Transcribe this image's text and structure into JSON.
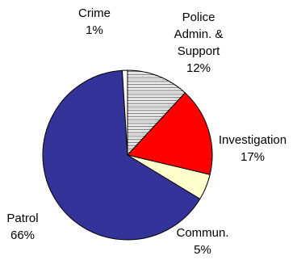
{
  "chart_data": {
    "type": "pie",
    "title": "",
    "slices": [
      {
        "key": "police",
        "label_lines": [
          "Police",
          "Admin. &",
          "Support"
        ],
        "value": 12,
        "value_label": "12%",
        "color": "#ffffff",
        "pattern": "horizontal-stripes"
      },
      {
        "key": "investigation",
        "label_lines": [
          "Investigation"
        ],
        "value": 17,
        "value_label": "17%",
        "color": "#ff0000"
      },
      {
        "key": "commun",
        "label_lines": [
          "Commun."
        ],
        "value": 5,
        "value_label": "5%",
        "color": "#ffffcc"
      },
      {
        "key": "patrol",
        "label_lines": [
          "Patrol"
        ],
        "value": 66,
        "value_label": "66%",
        "color": "#333399"
      },
      {
        "key": "crime",
        "label_lines": [
          "Crime"
        ],
        "value": 1,
        "value_label": "1%",
        "color": "#ffffff"
      }
    ],
    "start": "top, clockwise",
    "legend": "none"
  }
}
